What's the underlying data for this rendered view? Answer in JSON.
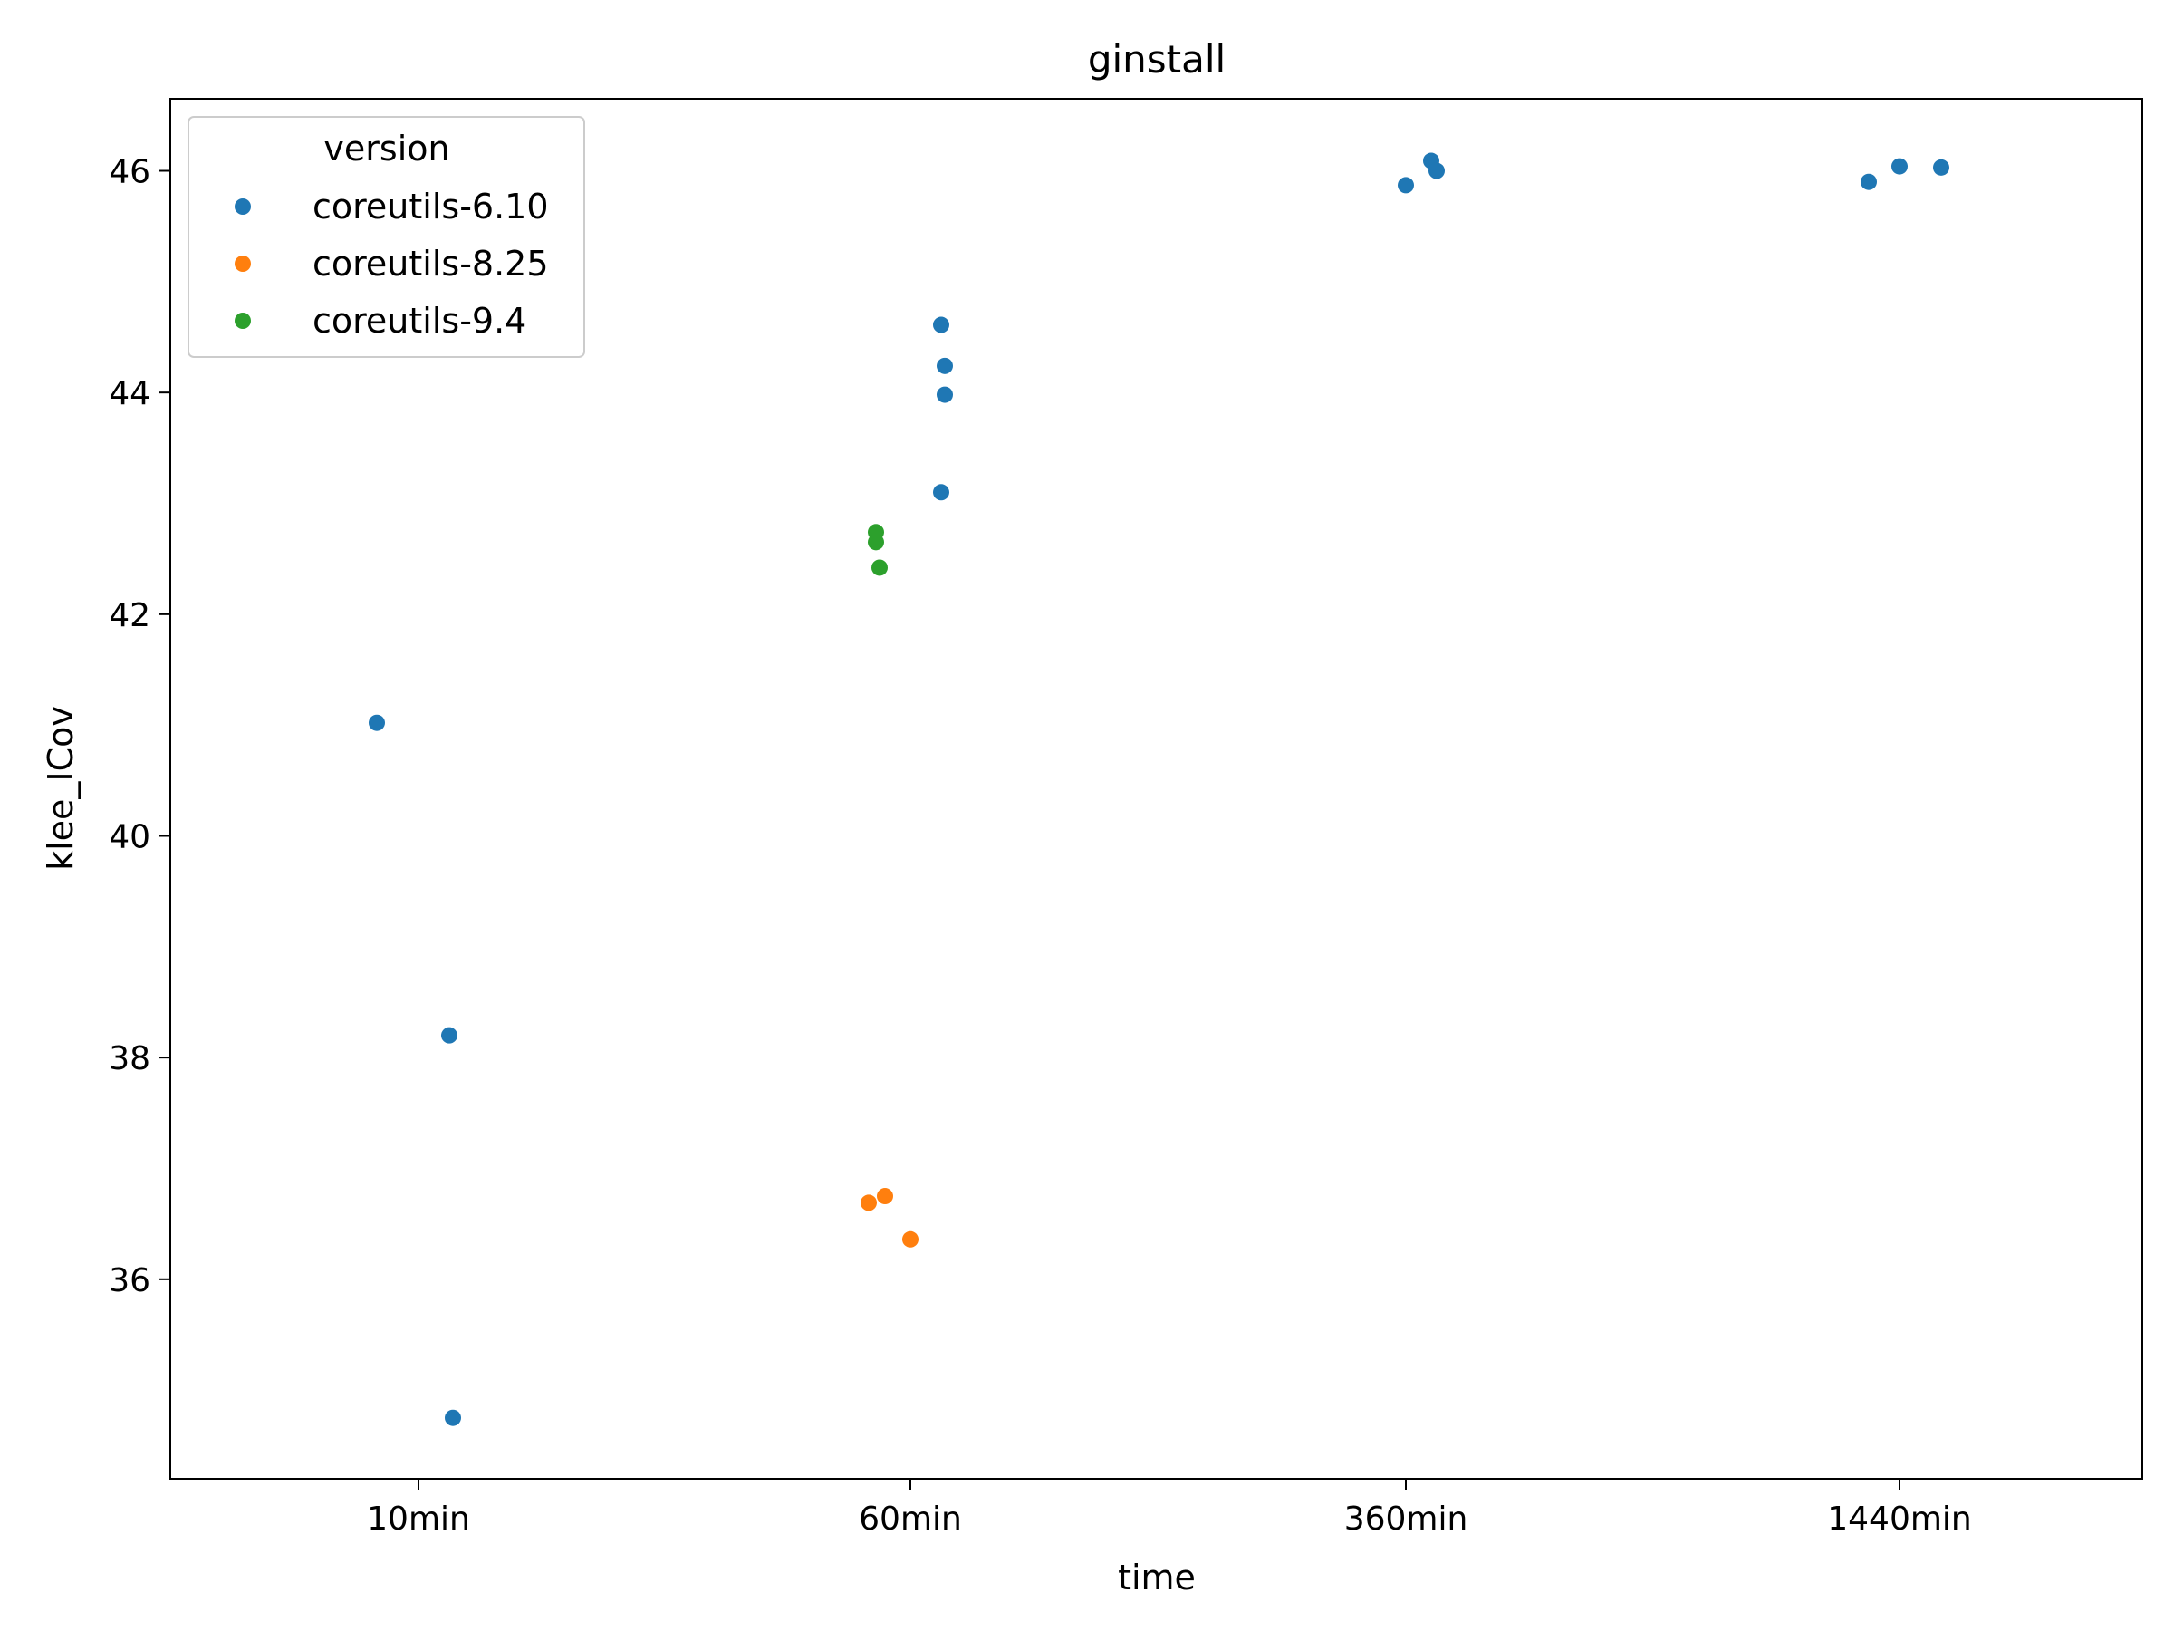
{
  "chart_data": {
    "type": "scatter",
    "title": "ginstall",
    "xlabel": "time",
    "ylabel": "klee_ICov",
    "categories": [
      "10min",
      "60min",
      "360min",
      "1440min"
    ],
    "yticks": [
      36,
      38,
      40,
      42,
      44,
      46
    ],
    "ylim": [
      34.2,
      46.65
    ],
    "grid": false,
    "legend": {
      "title": "version",
      "placement": "top-left"
    },
    "series": [
      {
        "name": "coreutils-6.10",
        "color": "#1f77b4",
        "points": [
          {
            "x": "10min",
            "y": 34.75
          },
          {
            "x": "10min",
            "y": 38.2
          },
          {
            "x": "10min",
            "y": 41.02
          },
          {
            "x": "60min",
            "y": 43.1
          },
          {
            "x": "60min",
            "y": 43.98
          },
          {
            "x": "60min",
            "y": 44.24
          },
          {
            "x": "60min",
            "y": 44.61
          },
          {
            "x": "360min",
            "y": 45.87
          },
          {
            "x": "360min",
            "y": 46.09
          },
          {
            "x": "360min",
            "y": 46.0
          },
          {
            "x": "1440min",
            "y": 45.9
          },
          {
            "x": "1440min",
            "y": 46.03
          },
          {
            "x": "1440min",
            "y": 46.04
          }
        ]
      },
      {
        "name": "coreutils-8.25",
        "color": "#ff7f0e",
        "points": [
          {
            "x": "60min",
            "y": 36.69
          },
          {
            "x": "60min",
            "y": 36.36
          },
          {
            "x": "60min",
            "y": 36.75
          }
        ]
      },
      {
        "name": "coreutils-9.4",
        "color": "#2ca02c",
        "points": [
          {
            "x": "60min",
            "y": 42.42
          },
          {
            "x": "60min",
            "y": 42.74
          },
          {
            "x": "60min",
            "y": 42.65
          }
        ]
      }
    ]
  }
}
